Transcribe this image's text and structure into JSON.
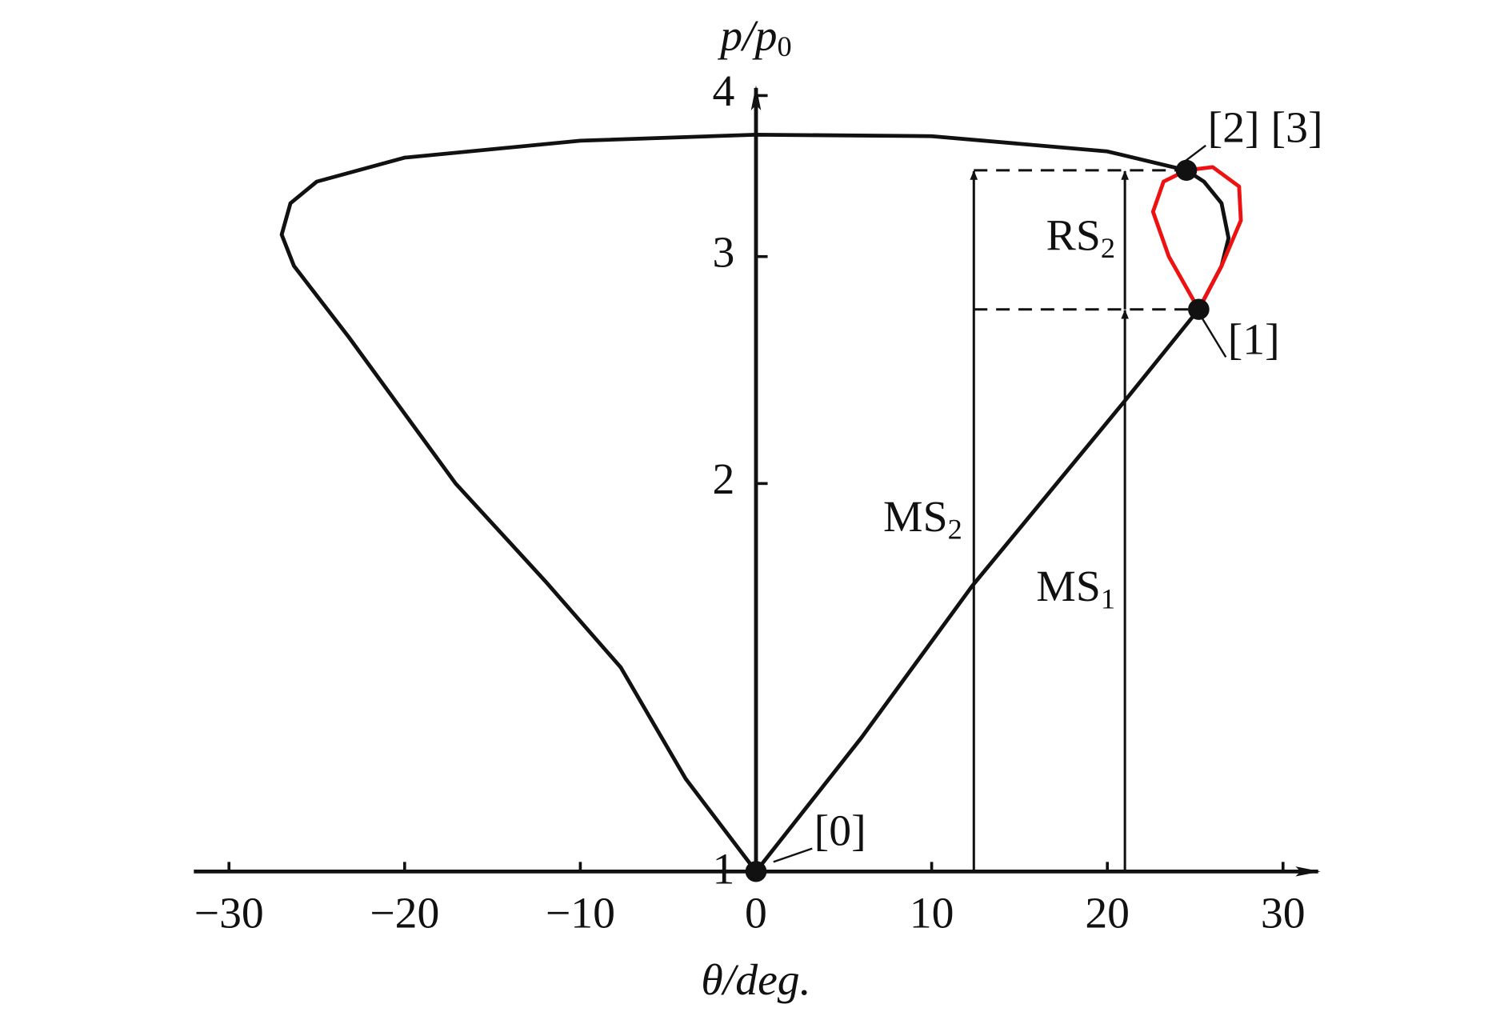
{
  "chart_data": {
    "type": "line",
    "xlabel": "θ/deg.",
    "ylabel": {
      "text": "p/p",
      "sub": "0"
    },
    "xlim": [
      -32,
      32
    ],
    "xticks": [
      -30,
      -20,
      -10,
      0,
      10,
      20,
      30
    ],
    "ylim": [
      1,
      4
    ],
    "yticks": [
      1,
      2,
      3,
      4
    ],
    "log_y": true,
    "series": [
      {
        "color": "#111111",
        "x": [
          0,
          6,
          12.3,
          20.9,
          25.2,
          26.5,
          26.9,
          26.5,
          25.5,
          24.5,
          20,
          10,
          0,
          -10,
          -20,
          -25,
          -26.5,
          -27,
          -26.3,
          -23.2,
          -17.1,
          -12,
          -7.7,
          -4,
          0
        ],
        "values": [
          1,
          1.27,
          1.665,
          2.31,
          2.73,
          2.95,
          3.1,
          3.3,
          3.43,
          3.5,
          3.62,
          3.72,
          3.73,
          3.69,
          3.58,
          3.43,
          3.3,
          3.12,
          2.95,
          2.6,
          2.0,
          1.68,
          1.44,
          1.18,
          1
        ]
      },
      {
        "color": "#ee1111",
        "x": [
          25.2,
          23.5,
          22.6,
          23.2,
          24.5,
          26,
          27.5,
          27.6,
          26.5,
          25.2
        ],
        "values": [
          2.73,
          3.0,
          3.25,
          3.43,
          3.5,
          3.52,
          3.4,
          3.2,
          2.95,
          2.73
        ]
      }
    ],
    "points": [
      {
        "label": "[0]",
        "x": 0,
        "y": 1
      },
      {
        "label": "[1]",
        "x": 25.2,
        "y": 2.73
      },
      {
        "label": "[2] [3]",
        "x": 24.5,
        "y": 3.5
      }
    ],
    "dashed": [
      {
        "y": 3.5,
        "x": [
          12.4,
          24.5
        ]
      },
      {
        "y": 2.73,
        "x": [
          12.4,
          25.2
        ]
      }
    ],
    "arrows": [
      {
        "label": "MS",
        "sub": "2",
        "x": 12.4,
        "from": 1,
        "to": 3.5
      },
      {
        "label": "MS",
        "sub": "1",
        "x": 21,
        "from": 1,
        "to": 2.73
      },
      {
        "label": "RS",
        "sub": "2",
        "x": 21,
        "from": 2.73,
        "to": 3.5
      }
    ]
  }
}
